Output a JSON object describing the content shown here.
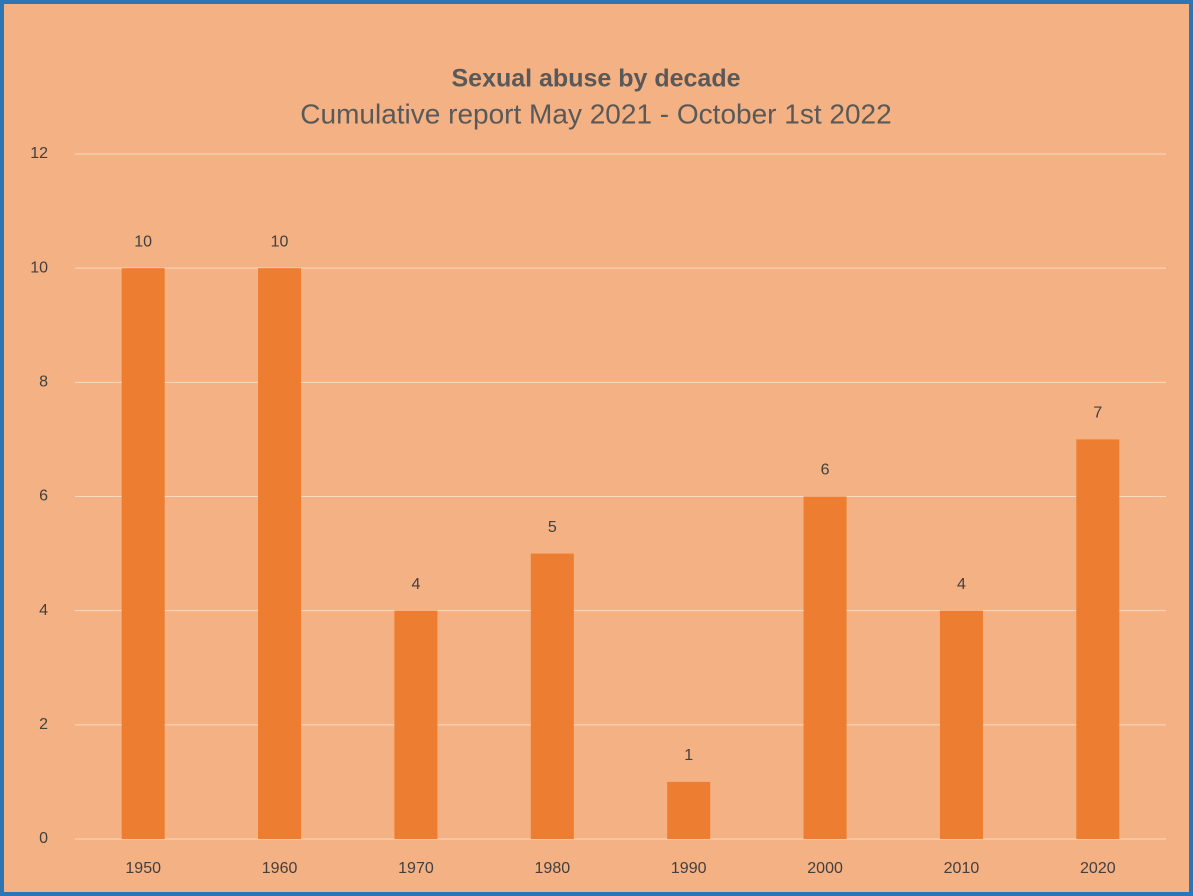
{
  "chart_data": {
    "type": "bar",
    "title": "Sexual abuse by decade",
    "subtitle": "Cumulative report May 2021 - October 1st 2022",
    "categories": [
      "1950",
      "1960",
      "1970",
      "1980",
      "1990",
      "2000",
      "2010",
      "2020"
    ],
    "values": [
      10,
      10,
      4,
      5,
      1,
      6,
      4,
      7
    ],
    "color": "#ed7d31",
    "ylim": [
      0,
      12
    ],
    "yticks": [
      0,
      2,
      4,
      6,
      8,
      10,
      12
    ],
    "grid": true,
    "data_labels": true
  }
}
